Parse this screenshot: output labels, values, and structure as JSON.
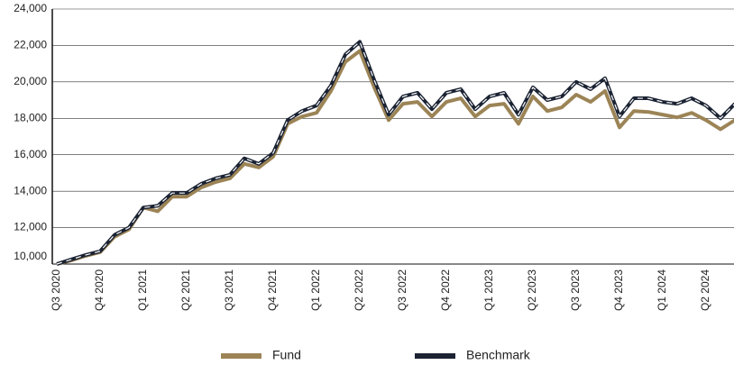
{
  "chart_data": {
    "type": "line",
    "categories": [
      "Q3 2020",
      null,
      null,
      "Q4 2020",
      null,
      null,
      "Q1 2021",
      null,
      null,
      "Q2 2021",
      null,
      null,
      "Q3 2021",
      null,
      null,
      "Q4 2021",
      null,
      null,
      "Q1 2022",
      null,
      null,
      "Q2 2022",
      null,
      null,
      "Q3 2022",
      null,
      null,
      "Q4 2022",
      null,
      null,
      "Q1 2023",
      null,
      null,
      "Q2 2023",
      null,
      null,
      "Q3 2023",
      null,
      null,
      "Q4 2023",
      null,
      null,
      "Q1 2024",
      null,
      null,
      "Q2 2024",
      null,
      null
    ],
    "series": [
      {
        "name": "Fund",
        "color": "#9c8456",
        "values": [
          10000,
          10200,
          10450,
          10650,
          11500,
          11900,
          13100,
          12900,
          13700,
          13700,
          14200,
          14500,
          14700,
          15500,
          15300,
          15900,
          17700,
          18100,
          18300,
          19500,
          21100,
          21700,
          19700,
          17900,
          18800,
          18900,
          18100,
          18900,
          19100,
          18100,
          18700,
          18800,
          17700,
          19200,
          18400,
          18600,
          19300,
          18900,
          19500,
          17500,
          18400,
          18350,
          18200,
          18050,
          18300,
          17900,
          17400,
          17900
        ]
      },
      {
        "name": "Benchmark",
        "color": "#1b2333",
        "values": [
          10000,
          10250,
          10500,
          10700,
          11600,
          12000,
          13100,
          13200,
          13900,
          13900,
          14400,
          14700,
          14900,
          15800,
          15500,
          16100,
          17900,
          18400,
          18700,
          19800,
          21500,
          22200,
          20100,
          18200,
          19200,
          19400,
          18500,
          19400,
          19600,
          18500,
          19200,
          19400,
          18200,
          19700,
          19000,
          19200,
          20000,
          19600,
          20200,
          18100,
          19100,
          19100,
          18900,
          18800,
          19100,
          18700,
          18000,
          18800
        ]
      }
    ],
    "ylim": [
      10000,
      24000
    ],
    "yticks": [
      {
        "value": 10000,
        "label": "10,000"
      },
      {
        "value": 12000,
        "label": "12,000"
      },
      {
        "value": 14000,
        "label": "14,000"
      },
      {
        "value": 16000,
        "label": "16,000"
      },
      {
        "value": 18000,
        "label": "18,000"
      },
      {
        "value": 20000,
        "label": "20,000"
      },
      {
        "value": 22000,
        "label": "22,000"
      },
      {
        "value": 24000,
        "label": "24,000"
      }
    ],
    "grid": true
  }
}
